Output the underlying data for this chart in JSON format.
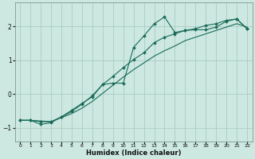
{
  "xlabel": "Humidex (Indice chaleur)",
  "bg_color": "#cce8e0",
  "grid_color": "#aaccC4",
  "line_color": "#1a6b5a",
  "xlim": [
    -0.5,
    22.5
  ],
  "ylim": [
    -1.4,
    2.7
  ],
  "yticks": [
    -1,
    0,
    1,
    2
  ],
  "xticks": [
    0,
    1,
    2,
    3,
    4,
    5,
    6,
    7,
    8,
    9,
    10,
    11,
    12,
    13,
    14,
    15,
    16,
    17,
    18,
    19,
    20,
    21,
    22
  ],
  "line1_x": [
    0,
    1,
    2,
    3,
    4,
    5,
    6,
    7,
    8,
    9,
    10,
    11,
    12,
    13,
    14,
    15,
    16,
    17,
    18,
    19,
    20,
    21,
    22
  ],
  "line1_y": [
    -0.78,
    -0.78,
    -0.9,
    -0.85,
    -0.68,
    -0.52,
    -0.3,
    -0.05,
    0.28,
    0.32,
    0.32,
    1.38,
    1.72,
    2.08,
    2.28,
    1.82,
    1.88,
    1.9,
    1.9,
    1.98,
    2.15,
    2.22,
    1.93
  ],
  "line2_x": [
    0,
    1,
    2,
    3,
    4,
    5,
    6,
    7,
    8,
    9,
    10,
    11,
    12,
    13,
    14,
    15,
    16,
    17,
    18,
    19,
    20,
    21,
    22
  ],
  "line2_y": [
    -0.78,
    -0.78,
    -0.8,
    -0.82,
    -0.7,
    -0.58,
    -0.42,
    -0.22,
    0.02,
    0.26,
    0.5,
    0.72,
    0.92,
    1.12,
    1.28,
    1.42,
    1.58,
    1.68,
    1.78,
    1.88,
    1.98,
    2.08,
    1.98
  ],
  "line3_x": [
    0,
    1,
    2,
    3,
    4,
    5,
    6,
    7,
    8,
    9,
    10,
    11,
    12,
    13,
    14,
    15,
    16,
    17,
    18,
    19,
    20,
    21,
    22
  ],
  "line3_y": [
    -0.78,
    -0.78,
    -0.82,
    -0.82,
    -0.68,
    -0.48,
    -0.28,
    -0.08,
    0.28,
    0.52,
    0.78,
    1.02,
    1.22,
    1.52,
    1.68,
    1.78,
    1.88,
    1.93,
    2.03,
    2.08,
    2.18,
    2.22,
    1.93
  ],
  "marker_x1": [
    0,
    1,
    2,
    3,
    4,
    5,
    6,
    7,
    8,
    9,
    10,
    11,
    12,
    13,
    14,
    15,
    16,
    17,
    18,
    19,
    20,
    21,
    22
  ],
  "marker_x3": [
    0,
    1,
    2,
    3,
    4,
    5,
    6,
    7,
    8,
    9,
    10,
    11,
    12,
    13,
    14,
    15,
    16,
    17,
    18,
    19,
    20,
    21,
    22
  ]
}
